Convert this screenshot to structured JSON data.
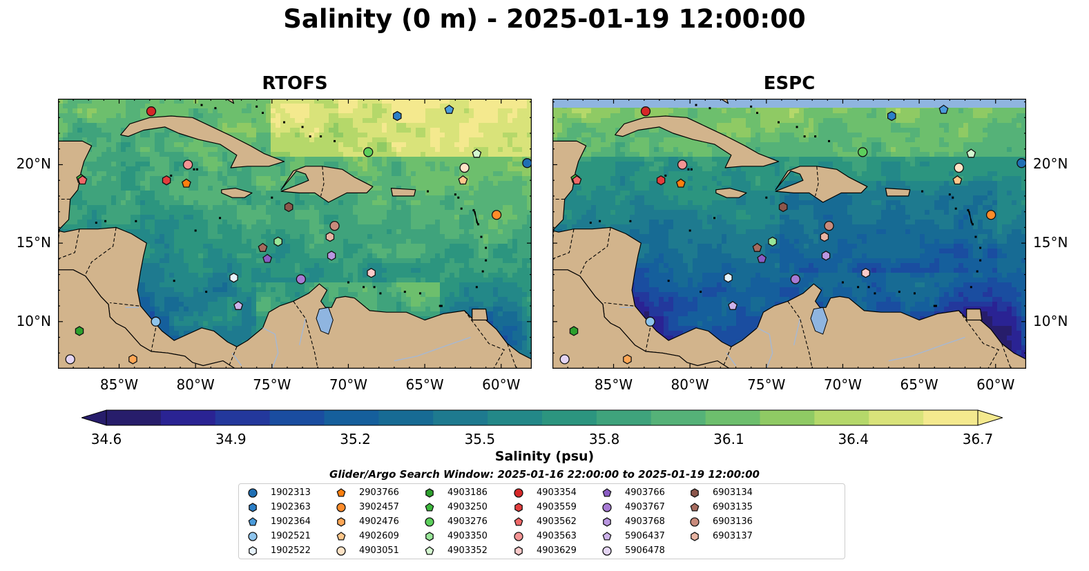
{
  "title": "Salinity (0 m) - 2025-01-19 12:00:00",
  "panels": [
    {
      "name": "RTOFS",
      "variant": "rtofs"
    },
    {
      "name": "ESPC",
      "variant": "espc"
    }
  ],
  "lon_ticks": [
    "85°W",
    "80°W",
    "75°W",
    "70°W",
    "65°W",
    "60°W"
  ],
  "lat_ticks": [
    "20°N",
    "15°N",
    "10°N"
  ],
  "map_extent": {
    "lon": [
      -89,
      -58
    ],
    "lat": [
      7,
      24.2
    ]
  },
  "colorbar": {
    "ticks": [
      "34.6",
      "34.9",
      "35.2",
      "35.5",
      "35.8",
      "36.1",
      "36.4",
      "36.7"
    ],
    "range": [
      34.6,
      36.7
    ],
    "label": "Salinity (psu)",
    "extend": "both"
  },
  "search_window": "Glider/Argo Search Window: 2025-01-16 22:00:00 to 2025-01-19 12:00:00",
  "colors": {
    "land": "#d2b48c",
    "lake": "#8fb5e0",
    "river": "#a8b8d0"
  },
  "legend": [
    {
      "id": "1902313",
      "marker": "circle",
      "color": "#1f6fb4"
    },
    {
      "id": "1902363",
      "marker": "hexagon",
      "color": "#2b7fc8"
    },
    {
      "id": "1902364",
      "marker": "pentagon",
      "color": "#4a9bdb"
    },
    {
      "id": "1902521",
      "marker": "circle",
      "color": "#8ec4ec"
    },
    {
      "id": "1902522",
      "marker": "hexagon",
      "color": "#e6f2fb"
    },
    {
      "id": "2903766",
      "marker": "pentagon",
      "color": "#ff7f0e"
    },
    {
      "id": "3902457",
      "marker": "circle",
      "color": "#ff8c2a"
    },
    {
      "id": "4902476",
      "marker": "hexagon",
      "color": "#ffa756"
    },
    {
      "id": "4902609",
      "marker": "pentagon",
      "color": "#ffc78a"
    },
    {
      "id": "4903051",
      "marker": "circle",
      "color": "#ffe3c6"
    },
    {
      "id": "4903186",
      "marker": "hexagon",
      "color": "#2ca02c"
    },
    {
      "id": "4903250",
      "marker": "pentagon",
      "color": "#3cb83c"
    },
    {
      "id": "4903276",
      "marker": "circle",
      "color": "#5ccf5c"
    },
    {
      "id": "4903350",
      "marker": "hexagon",
      "color": "#98e698"
    },
    {
      "id": "4903352",
      "marker": "pentagon",
      "color": "#d4f8d0"
    },
    {
      "id": "4903354",
      "marker": "circle",
      "color": "#d62728"
    },
    {
      "id": "4903559",
      "marker": "hexagon",
      "color": "#e33d3d"
    },
    {
      "id": "4903562",
      "marker": "pentagon",
      "color": "#f06868"
    },
    {
      "id": "4903563",
      "marker": "circle",
      "color": "#f49494"
    },
    {
      "id": "4903629",
      "marker": "hexagon",
      "color": "#fbcaca"
    },
    {
      "id": "4903766",
      "marker": "pentagon",
      "color": "#8a5cc4"
    },
    {
      "id": "4903767",
      "marker": "circle",
      "color": "#a77ad4"
    },
    {
      "id": "4903768",
      "marker": "hexagon",
      "color": "#b996e0"
    },
    {
      "id": "5906437",
      "marker": "pentagon",
      "color": "#cdb3ea"
    },
    {
      "id": "5906478",
      "marker": "circle",
      "color": "#e4d5f4"
    },
    {
      "id": "6903134",
      "marker": "hexagon",
      "color": "#8c564b"
    },
    {
      "id": "6903135",
      "marker": "pentagon",
      "color": "#a66b5e"
    },
    {
      "id": "6903136",
      "marker": "circle",
      "color": "#c98b7c"
    },
    {
      "id": "6903137",
      "marker": "hexagon",
      "color": "#e8b4a3"
    }
  ],
  "floats": [
    {
      "id": "4903354",
      "lon": -82.9,
      "lat": 23.4
    },
    {
      "id": "1902363",
      "lon": -66.8,
      "lat": 23.1
    },
    {
      "id": "1902364",
      "lon": -63.4,
      "lat": 23.5
    },
    {
      "id": "4903276",
      "lon": -68.7,
      "lat": 20.8
    },
    {
      "id": "4903352",
      "lon": -61.6,
      "lat": 20.7
    },
    {
      "id": "4903051",
      "lon": -62.4,
      "lat": 19.8
    },
    {
      "id": "4902609",
      "lon": -62.5,
      "lat": 19.0
    },
    {
      "id": "1902313",
      "lon": -58.3,
      "lat": 20.1
    },
    {
      "id": "4903563",
      "lon": -80.5,
      "lat": 20.0
    },
    {
      "id": "4903559",
      "lon": -81.9,
      "lat": 19.0
    },
    {
      "id": "2903766",
      "lon": -80.6,
      "lat": 18.8
    },
    {
      "id": "4903250",
      "lon": -87.5,
      "lat": 19.1
    },
    {
      "id": "4903562",
      "lon": -87.4,
      "lat": 19.0
    },
    {
      "id": "6903134",
      "lon": -73.9,
      "lat": 17.3
    },
    {
      "id": "3902457",
      "lon": -60.3,
      "lat": 16.8
    },
    {
      "id": "6903136",
      "lon": -70.9,
      "lat": 16.1
    },
    {
      "id": "6903137",
      "lon": -71.2,
      "lat": 15.4
    },
    {
      "id": "4903350",
      "lon": -74.6,
      "lat": 15.1
    },
    {
      "id": "6903135",
      "lon": -75.6,
      "lat": 14.7
    },
    {
      "id": "4903766",
      "lon": -75.3,
      "lat": 14.0
    },
    {
      "id": "4903768",
      "lon": -71.1,
      "lat": 14.2
    },
    {
      "id": "4903629",
      "lon": -68.5,
      "lat": 13.1
    },
    {
      "id": "1902522",
      "lon": -77.5,
      "lat": 12.8
    },
    {
      "id": "4903767",
      "lon": -73.1,
      "lat": 12.7
    },
    {
      "id": "5906437",
      "lon": -77.2,
      "lat": 11.0
    },
    {
      "id": "1902521",
      "lon": -82.6,
      "lat": 10.0
    },
    {
      "id": "4903186",
      "lon": -87.6,
      "lat": 9.4
    },
    {
      "id": "5906478",
      "lon": -88.2,
      "lat": 7.6
    },
    {
      "id": "4902476",
      "lon": -84.1,
      "lat": 7.6
    }
  ]
}
